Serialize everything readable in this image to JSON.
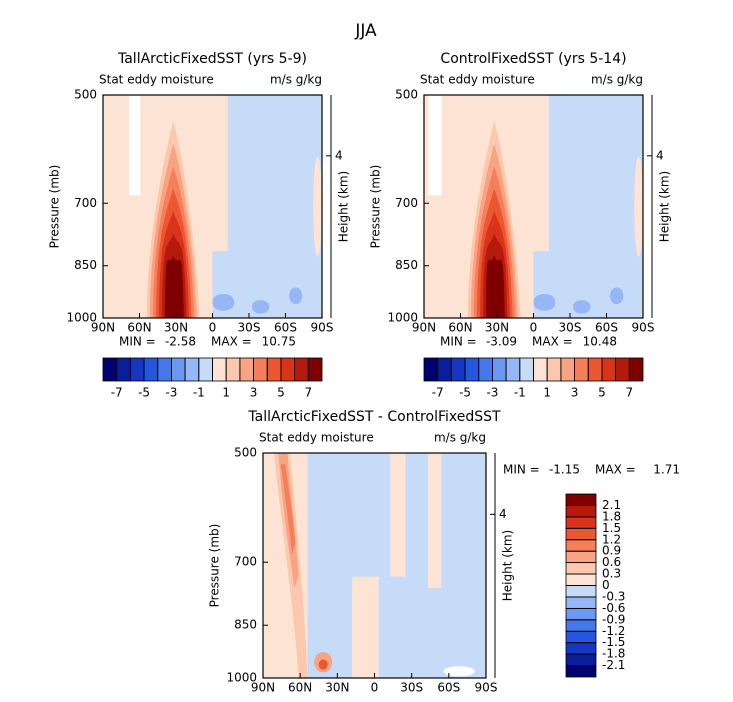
{
  "title": "JJA",
  "chart_data": [
    {
      "type": "contour",
      "title": "TallArcticFixedSST (yrs 5-9)",
      "subtitle_left": "Stat eddy moisture",
      "subtitle_right": "m/s g/kg",
      "ylabel": "Pressure (mb)",
      "y2label": "Height (km)",
      "xlim": [
        90,
        -90
      ],
      "xticks": [
        {
          "value": 90,
          "label": "90N"
        },
        {
          "value": 60,
          "label": "60N"
        },
        {
          "value": 30,
          "label": "30N"
        },
        0,
        {
          "value": -30,
          "label": "30S"
        },
        {
          "value": -60,
          "label": "60S"
        },
        {
          "value": -90,
          "label": "90S"
        }
      ],
      "ylim": [
        1000,
        500
      ],
      "yticks": [
        500,
        700,
        850,
        1000
      ],
      "ylog": true,
      "y2lim": [
        0,
        5.5
      ],
      "y2ticks": [
        4
      ],
      "min_label": "MIN =",
      "min": -2.58,
      "max_label": "MAX =",
      "max": 10.75,
      "colorbar": {
        "orientation": "horizontal",
        "levels": [
          -7,
          -6,
          -5,
          -4,
          -3,
          -2,
          -1,
          0,
          1,
          2,
          3,
          4,
          5,
          6,
          7
        ],
        "ticks": [
          -7,
          -5,
          -3,
          -1,
          1,
          3,
          5,
          7
        ],
        "colors": [
          "#00006e",
          "#0a1e9c",
          "#1537c4",
          "#2456e0",
          "#4678ec",
          "#6d98f2",
          "#97b6f5",
          "#c5dbf7",
          "#fde3d3",
          "#fbc7ad",
          "#f8a383",
          "#f47f5a",
          "#ec5733",
          "#d9331a",
          "#b51a0c",
          "#7e0000"
        ]
      }
    },
    {
      "type": "contour",
      "title": "ControlFixedSST (yrs 5-14)",
      "subtitle_left": "Stat eddy moisture",
      "subtitle_right": "m/s g/kg",
      "ylabel": "Pressure (mb)",
      "y2label": "Height (km)",
      "xlim": [
        90,
        -90
      ],
      "xticks": [
        {
          "value": 90,
          "label": "90N"
        },
        {
          "value": 60,
          "label": "60N"
        },
        {
          "value": 30,
          "label": "30N"
        },
        0,
        {
          "value": -30,
          "label": "30S"
        },
        {
          "value": -60,
          "label": "60S"
        },
        {
          "value": -90,
          "label": "90S"
        }
      ],
      "ylim": [
        1000,
        500
      ],
      "yticks": [
        500,
        700,
        850,
        1000
      ],
      "ylog": true,
      "y2lim": [
        0,
        5.5
      ],
      "y2ticks": [
        4
      ],
      "min_label": "MIN =",
      "min": -3.09,
      "max_label": "MAX =",
      "max": 10.48,
      "colorbar": {
        "orientation": "horizontal",
        "levels": [
          -7,
          -6,
          -5,
          -4,
          -3,
          -2,
          -1,
          0,
          1,
          2,
          3,
          4,
          5,
          6,
          7
        ],
        "ticks": [
          -7,
          -5,
          -3,
          -1,
          1,
          3,
          5,
          7
        ],
        "colors": [
          "#00006e",
          "#0a1e9c",
          "#1537c4",
          "#2456e0",
          "#4678ec",
          "#6d98f2",
          "#97b6f5",
          "#c5dbf7",
          "#fde3d3",
          "#fbc7ad",
          "#f8a383",
          "#f47f5a",
          "#ec5733",
          "#d9331a",
          "#b51a0c",
          "#7e0000"
        ]
      }
    },
    {
      "type": "contour",
      "title": "TallArcticFixedSST - ControlFixedSST",
      "subtitle_left": "Stat eddy moisture",
      "subtitle_right": "m/s g/kg",
      "ylabel": "Pressure (mb)",
      "y2label": "Height (km)",
      "xlim": [
        90,
        -90
      ],
      "xticks": [
        {
          "value": 90,
          "label": "90N"
        },
        {
          "value": 60,
          "label": "60N"
        },
        {
          "value": 30,
          "label": "30N"
        },
        0,
        {
          "value": -30,
          "label": "30S"
        },
        {
          "value": -60,
          "label": "60S"
        },
        {
          "value": -90,
          "label": "90S"
        }
      ],
      "ylim": [
        1000,
        500
      ],
      "yticks": [
        500,
        700,
        850,
        1000
      ],
      "ylog": true,
      "y2lim": [
        0,
        5.5
      ],
      "y2ticks": [
        4
      ],
      "min_label": "MIN =",
      "min": -1.15,
      "max_label": "MAX =",
      "max": 1.71,
      "colorbar": {
        "orientation": "vertical",
        "levels": [
          -2.1,
          -1.8,
          -1.5,
          -1.2,
          -0.9,
          -0.6,
          -0.3,
          0,
          0.3,
          0.6,
          0.9,
          1.2,
          1.5,
          1.8,
          2.1
        ],
        "ticks": [
          -2.1,
          -1.8,
          -1.5,
          -1.2,
          -0.9,
          -0.6,
          -0.3,
          0,
          0.3,
          0.6,
          0.9,
          1.2,
          1.5,
          1.8,
          2.1
        ],
        "colors": [
          "#00006e",
          "#0a1e9c",
          "#1537c4",
          "#2456e0",
          "#4678ec",
          "#6d98f2",
          "#97b6f5",
          "#c5dbf7",
          "#fde3d3",
          "#fbc7ad",
          "#f8a383",
          "#f47f5a",
          "#ec5733",
          "#d9331a",
          "#b51a0c",
          "#7e0000"
        ]
      }
    }
  ]
}
